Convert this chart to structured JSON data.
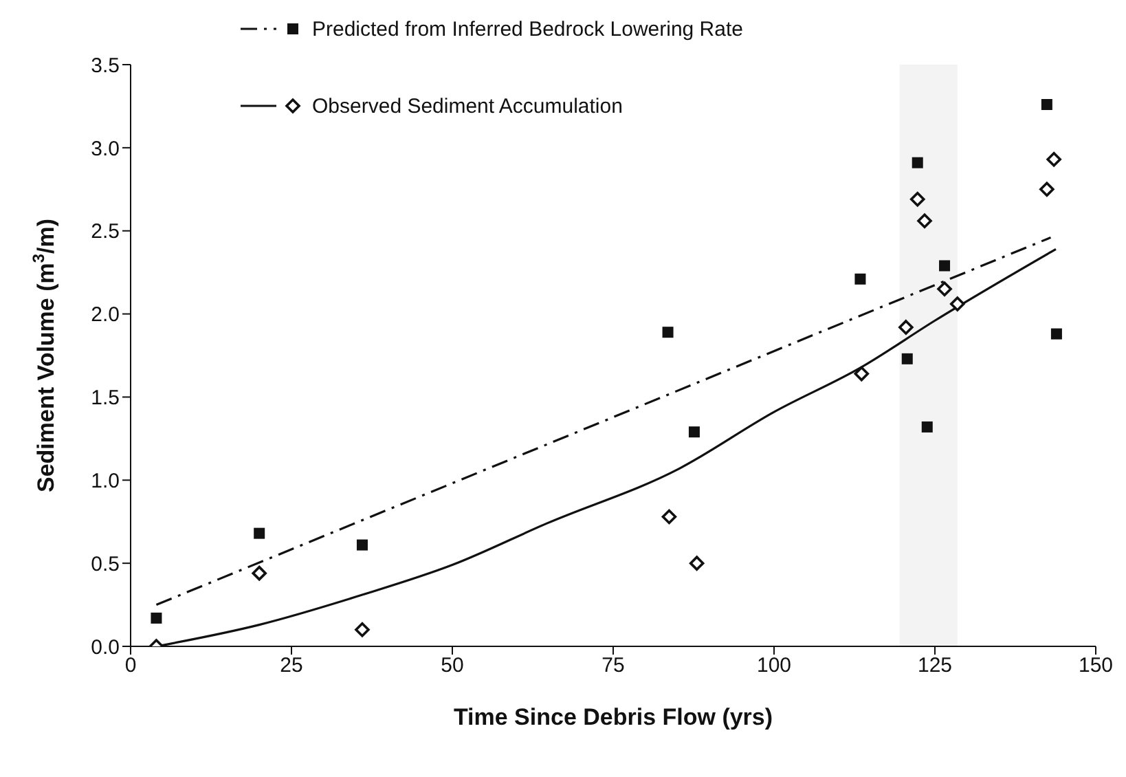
{
  "chart_data": {
    "type": "scatter",
    "xlabel": "Time Since Debris Flow (yrs)",
    "ylabel": "Sediment Volume (m$^{3}$/m)",
    "xlim": [
      0,
      150
    ],
    "xticks": [
      0,
      25,
      50,
      75,
      100,
      125,
      150
    ],
    "ylim": [
      0,
      3.5
    ],
    "yticks": [
      {
        "value": 0,
        "label": "0.0"
      },
      0.5,
      {
        "value": 1,
        "label": "1.0"
      },
      1.5,
      {
        "value": 2,
        "label": "2.0"
      },
      2.5,
      {
        "value": 3,
        "label": "3.0"
      },
      3.5
    ],
    "legend": "top left",
    "bands": [
      {
        "axis": "x",
        "from": 119.5,
        "to": 128.5,
        "color": "#f3f3f3"
      }
    ],
    "series": [
      {
        "name": "Predicted from Inferred Bedrock Lowering Rate",
        "marker": "square",
        "color": "#111111",
        "x": [
          4,
          20,
          36,
          83.5,
          87.6,
          113.4,
          120.7,
          122.3,
          123.8,
          126.5,
          142.4,
          143.9
        ],
        "values": [
          0.17,
          0.68,
          0.61,
          1.89,
          1.29,
          2.21,
          1.73,
          2.91,
          1.32,
          2.29,
          3.26,
          1.88
        ]
      },
      {
        "type": "line",
        "marker": "none",
        "line_style": "dashed",
        "color": "#111111",
        "x": [
          4,
          143
        ],
        "values": [
          0.25,
          2.46
        ]
      },
      {
        "name": "Observed Sediment Accumulation",
        "marker": "diamond",
        "color": "#111111",
        "x": [
          4,
          20,
          36,
          83.7,
          88,
          113.6,
          120.5,
          122.3,
          123.4,
          126.5,
          128.5,
          142.4,
          143.5
        ],
        "values": [
          0.0,
          0.44,
          0.1,
          0.78,
          0.5,
          1.64,
          1.92,
          2.69,
          2.56,
          2.15,
          2.06,
          2.75,
          2.93
        ]
      },
      {
        "type": "line",
        "marker": "none",
        "line_style": "solid",
        "color": "#111111",
        "x": [
          4,
          20,
          36,
          50,
          64.7,
          85.3,
          100,
          113.6,
          125,
          143.8
        ],
        "values": [
          0.0,
          0.13,
          0.31,
          0.49,
          0.74,
          1.07,
          1.41,
          1.68,
          1.96,
          2.39
        ]
      }
    ]
  }
}
